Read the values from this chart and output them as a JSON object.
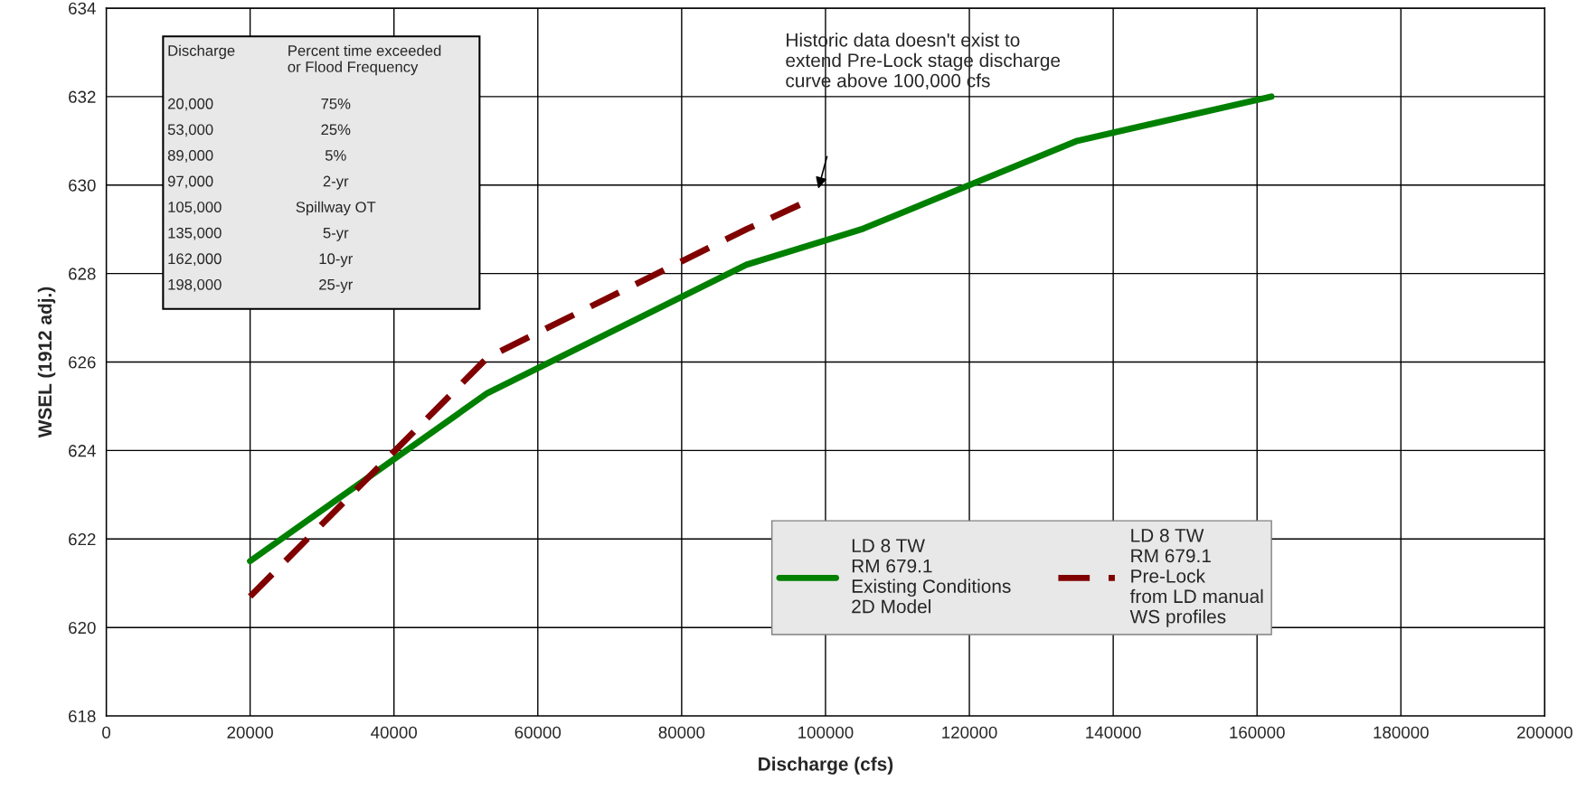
{
  "chart_data": {
    "type": "line",
    "xlabel": "Discharge (cfs)",
    "ylabel": "WSEL (1912 adj.)",
    "xlim": [
      0,
      200000
    ],
    "xticks": [
      0,
      20000,
      40000,
      60000,
      80000,
      100000,
      120000,
      140000,
      160000,
      180000,
      200000
    ],
    "ylim": [
      618,
      634
    ],
    "yticks": [
      618,
      620,
      622,
      624,
      626,
      628,
      630,
      632,
      634
    ],
    "grid": true,
    "legend": "bottom right",
    "marker": "none",
    "series": [
      {
        "name": "LD 8 TW\nRM 679.1\nExisting Conditions\n2D Model",
        "color": "#008000",
        "line_style": "solid",
        "x": [
          20000,
          53000,
          89000,
          105000,
          135000,
          162000
        ],
        "values": [
          621.5,
          625.3,
          628.2,
          629.0,
          631.0,
          632.0
        ]
      },
      {
        "name": "LD 8 TW\nRM 679.1\nPre-Lock\nfrom LD manual\nWS profiles",
        "color": "#800000",
        "line_style": "dashed",
        "x": [
          20000,
          53000,
          89000,
          97000
        ],
        "values": [
          620.7,
          626.1,
          629.0,
          629.6
        ]
      }
    ],
    "annotations": [
      "Historic data doesn't exist to\nextend Pre-Lock stage discharge\ncurve above 100,000 cfs",
      "Discharge",
      "Percent time exceeded\nor Flood Frequency",
      "20,000",
      "75%",
      "53,000",
      "25%",
      "89,000",
      "5%",
      "97,000",
      "2-yr",
      "105,000",
      "Spillway OT",
      "135,000",
      "5-yr",
      "162,000",
      "10-yr",
      "198,000",
      "25-yr"
    ]
  }
}
